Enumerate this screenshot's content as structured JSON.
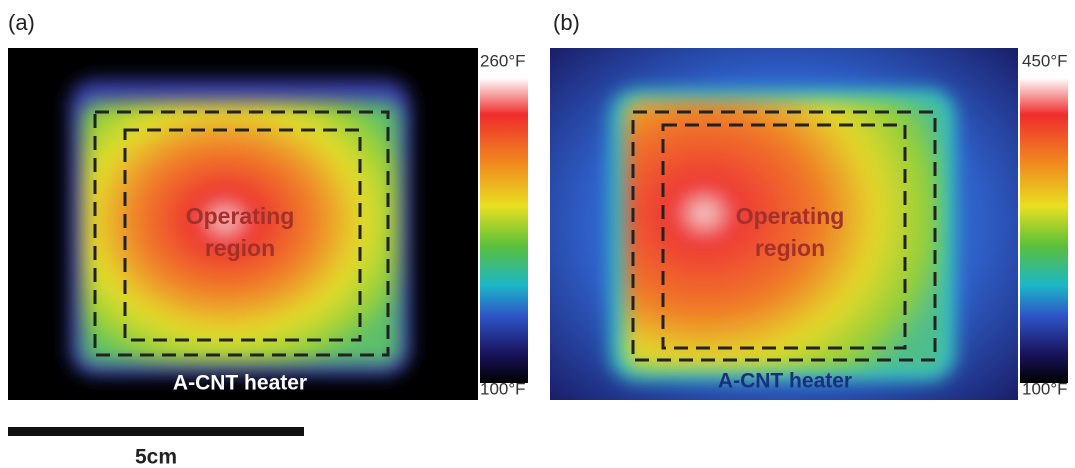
{
  "panels": [
    {
      "label": "(a)",
      "colorbar_max": "260°F",
      "colorbar_min": "100°F",
      "region": [
        "Operating",
        "region"
      ],
      "heater": "A-CNT heater"
    },
    {
      "label": "(b)",
      "colorbar_max": "450°F",
      "colorbar_min": "100°F",
      "region": [
        "Operating",
        "region"
      ],
      "heater": "A-CNT heater"
    }
  ],
  "scale_bar": "5cm"
}
